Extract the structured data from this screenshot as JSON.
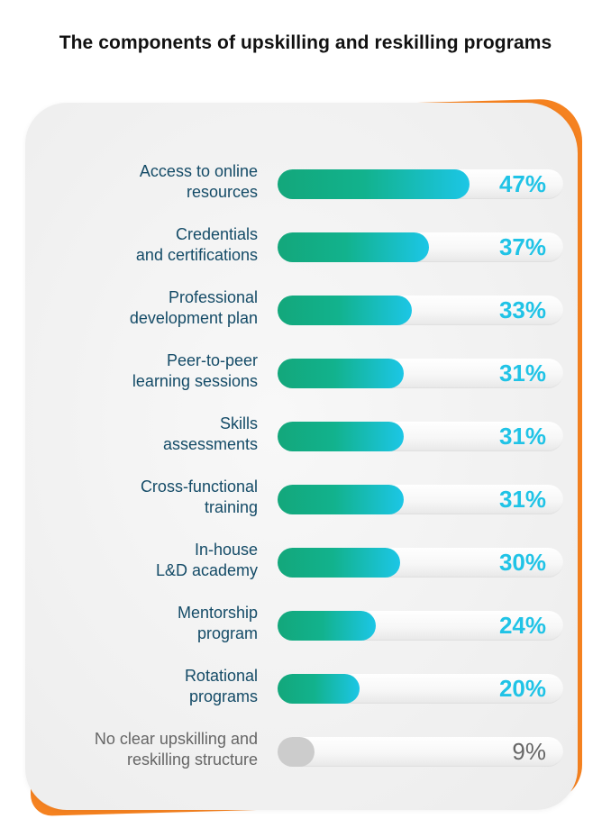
{
  "title": "The components of upskilling and reskilling programs",
  "colors": {
    "accent_orange": "#f58220",
    "label_text": "#144b67",
    "percent_text": "#20c3e6",
    "muted_text": "#666666",
    "bar_gradient_start": "#13a77b",
    "bar_gradient_end": "#1cc6e6",
    "muted_bar": "#cccccc"
  },
  "chart_data": {
    "type": "bar",
    "orientation": "horizontal",
    "title": "The components of upskilling and reskilling programs",
    "categories": [
      "Access to online\nresources",
      "Credentials\nand certifications",
      "Professional\ndevelopment plan",
      "Peer-to-peer\nlearning sessions",
      "Skills\nassessments",
      "Cross-functional\ntraining",
      "In-house\nL&D academy",
      "Mentorship\nprogram",
      "Rotational\nprograms",
      "No clear upskilling and\nreskilling structure"
    ],
    "values": [
      47,
      37,
      33,
      31,
      31,
      31,
      30,
      24,
      20,
      9
    ],
    "value_labels": [
      "47%",
      "37%",
      "33%",
      "31%",
      "31%",
      "31%",
      "30%",
      "24%",
      "20%",
      "9%"
    ],
    "muted": [
      false,
      false,
      false,
      false,
      false,
      false,
      false,
      false,
      false,
      true
    ],
    "xlim": [
      0,
      100
    ],
    "grid": false,
    "legend": "none"
  }
}
